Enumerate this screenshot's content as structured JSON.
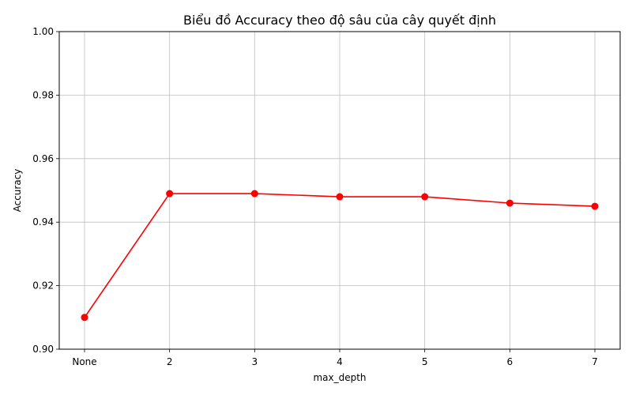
{
  "chart_data": {
    "type": "line",
    "title": "Biểu đồ Accuracy theo độ sâu của cây quyết định",
    "xlabel": "max_depth",
    "ylabel": "Accuracy",
    "categories": [
      "None",
      "2",
      "3",
      "4",
      "5",
      "6",
      "7"
    ],
    "series": [
      {
        "values": [
          0.91,
          0.949,
          0.949,
          0.948,
          0.948,
          0.946,
          0.945
        ],
        "color": "#ff0000",
        "marker": "circle"
      }
    ],
    "ylim": [
      0.9,
      1.0
    ],
    "yticks": [
      "0.90",
      "0.92",
      "0.94",
      "0.96",
      "0.98",
      "1.00"
    ],
    "grid": true,
    "legend": "none"
  }
}
